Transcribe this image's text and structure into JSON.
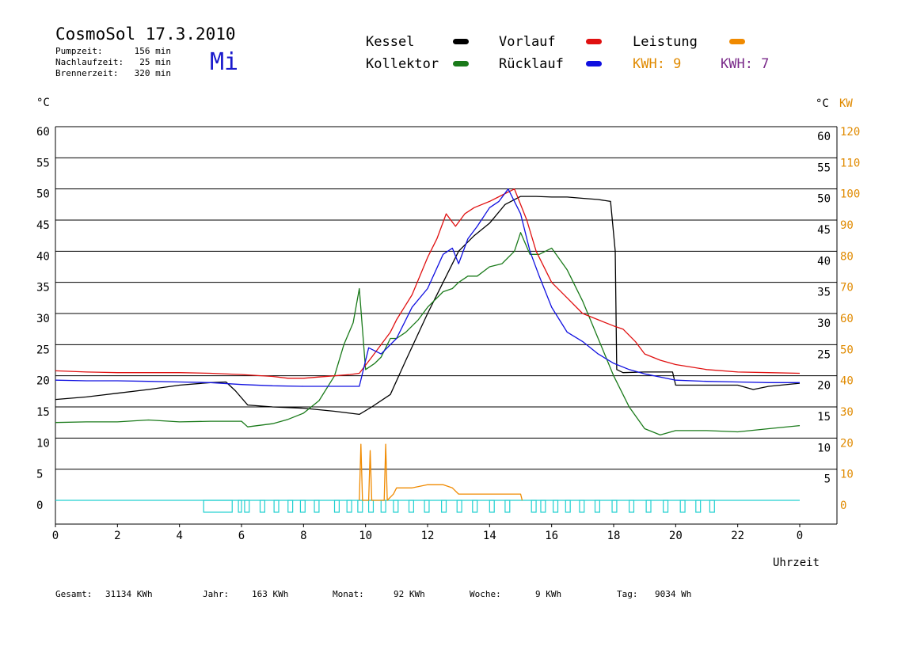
{
  "header": {
    "title": "CosmoSol 17.3.2010",
    "stats": [
      {
        "label": "Pumpzeit:",
        "value": "156 min"
      },
      {
        "label": "Nachlaufzeit:",
        "value": "25 min"
      },
      {
        "label": "Brennerzeit:",
        "value": "320 min"
      }
    ],
    "weekday": "Mi"
  },
  "legend": {
    "items": [
      {
        "label": "Kessel",
        "color": "#000000"
      },
      {
        "label": "Kollektor",
        "color": "#1a7a1a"
      },
      {
        "label": "Vorlauf",
        "color": "#e01010"
      },
      {
        "label": "Rücklauf",
        "color": "#1010e0"
      },
      {
        "label": "Leistung",
        "color": "#f08a00"
      }
    ],
    "kwh_left": {
      "text": "KWH: 9",
      "color": "#e08a00"
    },
    "kwh_right": {
      "text": "KWH: 7",
      "color": "#7a2a8a"
    }
  },
  "footer": {
    "items": [
      {
        "label": "Gesamt:",
        "value": "31134 KWh"
      },
      {
        "label": "Jahr:",
        "value": "163 KWh"
      },
      {
        "label": "Monat:",
        "value": "92 KWh"
      },
      {
        "label": "Woche:",
        "value": "9 KWh"
      },
      {
        "label": "Tag:",
        "value": "9034 Wh"
      }
    ]
  },
  "chart_data": {
    "type": "line",
    "xlabel": "Uhrzeit",
    "ylabel_left": "°C",
    "ylabel_right": "°C",
    "ylabel_right2": "KW",
    "x_ticks": [
      "0",
      "2",
      "4",
      "6",
      "8",
      "10",
      "12",
      "14",
      "16",
      "18",
      "20",
      "22",
      "0"
    ],
    "xlim": [
      0,
      24
    ],
    "y_ticks": [
      0,
      5,
      10,
      15,
      20,
      25,
      30,
      35,
      40,
      45,
      50,
      55,
      60
    ],
    "ylim": [
      0,
      60
    ],
    "y2_ticks": [
      0,
      10,
      20,
      30,
      40,
      50,
      60,
      70,
      80,
      90,
      100,
      110,
      120
    ],
    "y2lim": [
      0,
      120
    ],
    "grid": "horizontal",
    "series": [
      {
        "name": "Kessel",
        "color": "#000000",
        "x": [
          0,
          1,
          2,
          3,
          4,
          5,
          5.5,
          5.8,
          6.2,
          7,
          8,
          9,
          9.8,
          10.2,
          10.8,
          11.3,
          12,
          12.5,
          13,
          13.5,
          14,
          14.5,
          15,
          15.5,
          16,
          16.5,
          17,
          17.5,
          17.9,
          18.05,
          18.1,
          18.3,
          19,
          19.9,
          20,
          21,
          22,
          22.5,
          23,
          24
        ],
        "y": [
          16.2,
          16.6,
          17.2,
          17.8,
          18.5,
          18.9,
          19.0,
          17.6,
          15.3,
          15.0,
          14.8,
          14.3,
          13.8,
          15.0,
          17.0,
          22.5,
          30.0,
          35.0,
          40.0,
          42.5,
          44.5,
          47.5,
          48.8,
          48.8,
          48.7,
          48.7,
          48.5,
          48.3,
          48.0,
          40.0,
          21.0,
          20.5,
          20.6,
          20.6,
          18.5,
          18.5,
          18.5,
          17.8,
          18.3,
          18.8
        ]
      },
      {
        "name": "Kollektor",
        "color": "#1a7a1a",
        "x": [
          0,
          1,
          2,
          3,
          4,
          5,
          6,
          6.2,
          7,
          7.5,
          8,
          8.5,
          9,
          9.3,
          9.6,
          9.8,
          10,
          10.3,
          10.5,
          10.8,
          11,
          11.3,
          11.7,
          12,
          12.5,
          12.8,
          13,
          13.3,
          13.6,
          14,
          14.4,
          14.8,
          15,
          15.3,
          15.6,
          16,
          16.5,
          17,
          17.5,
          18,
          18.5,
          19,
          19.5,
          20,
          21,
          22,
          23,
          24
        ],
        "y": [
          12.5,
          12.6,
          12.6,
          12.9,
          12.6,
          12.7,
          12.7,
          11.8,
          12.3,
          13.0,
          14.0,
          16.0,
          20.0,
          25.0,
          28.5,
          34.0,
          21.0,
          22.0,
          23.0,
          26.0,
          26.0,
          27.0,
          29.0,
          31.0,
          33.5,
          34.0,
          35.0,
          36.0,
          36.0,
          37.5,
          38.0,
          40.0,
          43.0,
          39.5,
          39.5,
          40.5,
          37.0,
          32.0,
          26.0,
          20.0,
          15.0,
          11.5,
          10.5,
          11.2,
          11.2,
          11.0,
          11.5,
          12.0
        ]
      },
      {
        "name": "Vorlauf",
        "color": "#e01010",
        "x": [
          0,
          1,
          2,
          3,
          4,
          5,
          6,
          7,
          7.5,
          8,
          8.5,
          9,
          9.5,
          9.8,
          10.2,
          10.8,
          11,
          11.5,
          12,
          12.3,
          12.6,
          12.9,
          13.2,
          13.5,
          14,
          14.4,
          14.8,
          15.2,
          15.5,
          16,
          16.5,
          17,
          17.5,
          18,
          18.3,
          18.7,
          19,
          19.5,
          20,
          21,
          22,
          23,
          24
        ],
        "y": [
          20.8,
          20.6,
          20.5,
          20.5,
          20.5,
          20.4,
          20.2,
          19.9,
          19.6,
          19.6,
          19.8,
          20.0,
          20.2,
          20.4,
          23.0,
          27.0,
          29.0,
          33.0,
          39.0,
          42.0,
          46.0,
          44.0,
          46.0,
          47.0,
          48.0,
          49.0,
          50.0,
          45.0,
          40.0,
          35.0,
          32.5,
          30.0,
          29.0,
          28.0,
          27.5,
          25.5,
          23.5,
          22.5,
          21.8,
          21.0,
          20.6,
          20.5,
          20.4
        ]
      },
      {
        "name": "Rücklauf",
        "color": "#1010e0",
        "x": [
          0,
          1,
          2,
          3,
          4,
          5,
          6,
          7,
          8,
          9,
          9.8,
          10.1,
          10.5,
          11,
          11.5,
          12,
          12.5,
          12.8,
          13,
          13.3,
          13.6,
          14,
          14.3,
          14.6,
          15,
          15.3,
          15.6,
          16,
          16.5,
          17,
          17.5,
          18,
          18.5,
          19,
          19.5,
          20,
          21,
          22,
          23,
          24
        ],
        "y": [
          19.3,
          19.2,
          19.2,
          19.1,
          19.0,
          18.9,
          18.6,
          18.4,
          18.3,
          18.3,
          18.3,
          24.5,
          23.5,
          26.0,
          31.0,
          34.0,
          39.5,
          40.5,
          38.0,
          42.0,
          44.0,
          47.0,
          48.0,
          50.0,
          46.0,
          40.0,
          36.0,
          31.0,
          27.0,
          25.5,
          23.5,
          22.0,
          21.0,
          20.3,
          19.8,
          19.3,
          19.1,
          19.0,
          18.9,
          18.9
        ]
      },
      {
        "name": "Leistung",
        "color": "#f08a00",
        "x": [
          9.8,
          9.85,
          9.9,
          10.1,
          10.15,
          10.2,
          10.6,
          10.65,
          10.7,
          10.9,
          11.0,
          11.5,
          12.0,
          12.5,
          12.8,
          13.0,
          13.5,
          14.0,
          14.5,
          14.8,
          15.0,
          15.05
        ],
        "y": [
          0,
          9,
          0,
          0,
          8,
          0,
          0,
          9,
          0,
          1,
          2,
          2,
          2.5,
          2.5,
          2,
          1,
          1,
          1,
          1,
          1,
          1,
          0
        ]
      }
    ]
  }
}
